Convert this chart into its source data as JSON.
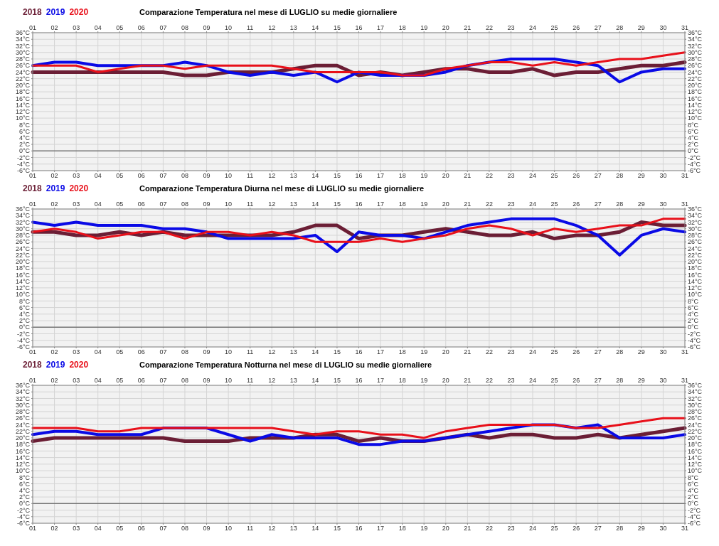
{
  "chart_data": [
    {
      "type": "line",
      "title": "Comparazione Temperatura nel mese di LUGLIO su medie giornaliere",
      "categories": [
        "01",
        "02",
        "03",
        "04",
        "05",
        "06",
        "07",
        "08",
        "09",
        "10",
        "11",
        "12",
        "13",
        "14",
        "15",
        "16",
        "17",
        "18",
        "19",
        "20",
        "21",
        "22",
        "23",
        "24",
        "25",
        "26",
        "27",
        "28",
        "29",
        "30",
        "31"
      ],
      "series": [
        {
          "name": "2018",
          "color": "#6b1e35",
          "values": [
            24,
            24,
            24,
            24,
            24,
            24,
            24,
            23,
            23,
            24,
            24,
            24,
            25,
            26,
            26,
            23,
            24,
            23,
            24,
            25,
            25,
            24,
            24,
            25,
            23,
            24,
            24,
            25,
            26,
            26,
            27
          ]
        },
        {
          "name": "2019",
          "color": "#0a0ae6",
          "values": [
            26,
            27,
            27,
            26,
            26,
            26,
            26,
            27,
            26,
            24,
            23,
            24,
            23,
            24,
            21,
            24,
            23,
            23,
            23,
            24,
            26,
            27,
            28,
            28,
            28,
            27,
            26,
            21,
            24,
            25,
            25
          ]
        },
        {
          "name": "2020",
          "color": "#e8101a",
          "values": [
            26,
            26,
            26,
            24,
            25,
            26,
            26,
            25,
            26,
            26,
            26,
            26,
            25,
            24,
            24,
            24,
            24,
            23,
            23,
            25,
            26,
            27,
            27,
            26,
            27,
            26,
            27,
            28,
            28,
            29,
            30
          ]
        }
      ],
      "ylim": [
        -6,
        36
      ],
      "yticks": [
        {
          "value": -6,
          "label": "-6°C"
        },
        {
          "value": -4,
          "label": "-4°C"
        },
        {
          "value": -2,
          "label": "-2°C"
        },
        {
          "value": 0,
          "label": "0°C"
        },
        {
          "value": 2,
          "label": "2°C"
        },
        {
          "value": 4,
          "label": "4°C"
        },
        {
          "value": 6,
          "label": "6°C"
        },
        {
          "value": 8,
          "label": "8°C"
        },
        {
          "value": 10,
          "label": "10°C"
        },
        {
          "value": 12,
          "label": "12°C"
        },
        {
          "value": 14,
          "label": "14°C"
        },
        {
          "value": 16,
          "label": "16°C"
        },
        {
          "value": 18,
          "label": "18°C"
        },
        {
          "value": 20,
          "label": "20°C"
        },
        {
          "value": 22,
          "label": "22°C"
        },
        {
          "value": 24,
          "label": "24°C"
        },
        {
          "value": 26,
          "label": "26°C"
        },
        {
          "value": 28,
          "label": "28°C"
        },
        {
          "value": 30,
          "label": "30°C"
        },
        {
          "value": 32,
          "label": "32°C"
        },
        {
          "value": 34,
          "label": "34°C"
        },
        {
          "value": 36,
          "label": "36°C"
        }
      ],
      "y2lim": [
        -6,
        36
      ],
      "y2ticks": [
        {
          "value": -6,
          "label": "-6°C"
        },
        {
          "value": -4,
          "label": "-4°C"
        },
        {
          "value": -2,
          "label": "-2°C"
        },
        {
          "value": 0,
          "label": "0°C"
        },
        {
          "value": 2,
          "label": "2°C"
        },
        {
          "value": 4,
          "label": "4°C"
        },
        {
          "value": 6,
          "label": "6°C"
        },
        {
          "value": 8,
          "label": "8°C"
        },
        {
          "value": 10,
          "label": "10°C"
        },
        {
          "value": 12,
          "label": "12°C"
        },
        {
          "value": 14,
          "label": "14°C"
        },
        {
          "value": 16,
          "label": "16°C"
        },
        {
          "value": 18,
          "label": "18°C"
        },
        {
          "value": 20,
          "label": "20°C"
        },
        {
          "value": 22,
          "label": "22°C"
        },
        {
          "value": 24,
          "label": "24°C"
        },
        {
          "value": 26,
          "label": "26°C"
        },
        {
          "value": 28,
          "label": "28°C"
        },
        {
          "value": 30,
          "label": "30°C"
        },
        {
          "value": 32,
          "label": "32°C"
        },
        {
          "value": 34,
          "label": "34°C"
        },
        {
          "value": 36,
          "label": "36°C"
        }
      ],
      "ref_lines": [
        {
          "axis": "y",
          "value": 0,
          "color": "#777777"
        }
      ],
      "grid": true,
      "legend": "top left",
      "marker": "none",
      "line_style": "solid"
    },
    {
      "type": "line",
      "title": "Comparazione Temperatura Diurna nel mese di LUGLIO su medie giornaliere",
      "categories": [
        "01",
        "02",
        "03",
        "04",
        "05",
        "06",
        "07",
        "08",
        "09",
        "10",
        "11",
        "12",
        "13",
        "14",
        "15",
        "16",
        "17",
        "18",
        "19",
        "20",
        "21",
        "22",
        "23",
        "24",
        "25",
        "26",
        "27",
        "28",
        "29",
        "30",
        "31"
      ],
      "series": [
        {
          "name": "2018",
          "color": "#6b1e35",
          "values": [
            29,
            29,
            28,
            28,
            29,
            28,
            29,
            28,
            28,
            28,
            28,
            28,
            29,
            31,
            31,
            27,
            28,
            28,
            29,
            30,
            29,
            28,
            28,
            29,
            27,
            28,
            28,
            29,
            32,
            31,
            31
          ]
        },
        {
          "name": "2019",
          "color": "#0a0ae6",
          "values": [
            32,
            31,
            32,
            31,
            31,
            31,
            30,
            30,
            29,
            27,
            27,
            27,
            27,
            28,
            23,
            29,
            28,
            28,
            27,
            29,
            31,
            32,
            33,
            33,
            33,
            31,
            28,
            22,
            28,
            30,
            29
          ]
        },
        {
          "name": "2020",
          "color": "#e8101a",
          "values": [
            29,
            30,
            29,
            27,
            28,
            29,
            29,
            27,
            29,
            29,
            28,
            29,
            28,
            26,
            26,
            26,
            27,
            26,
            27,
            28,
            30,
            31,
            30,
            28,
            30,
            29,
            30,
            31,
            31,
            33,
            33
          ]
        }
      ],
      "ylim": [
        -6,
        36
      ],
      "yticks": [
        {
          "value": -6,
          "label": "-6°C"
        },
        {
          "value": -4,
          "label": "-4°C"
        },
        {
          "value": -2,
          "label": "-2°C"
        },
        {
          "value": 0,
          "label": "0°C"
        },
        {
          "value": 2,
          "label": "2°C"
        },
        {
          "value": 4,
          "label": "4°C"
        },
        {
          "value": 6,
          "label": "6°C"
        },
        {
          "value": 8,
          "label": "8°C"
        },
        {
          "value": 10,
          "label": "10°C"
        },
        {
          "value": 12,
          "label": "12°C"
        },
        {
          "value": 14,
          "label": "14°C"
        },
        {
          "value": 16,
          "label": "16°C"
        },
        {
          "value": 18,
          "label": "18°C"
        },
        {
          "value": 20,
          "label": "20°C"
        },
        {
          "value": 22,
          "label": "22°C"
        },
        {
          "value": 24,
          "label": "24°C"
        },
        {
          "value": 26,
          "label": "26°C"
        },
        {
          "value": 28,
          "label": "28°C"
        },
        {
          "value": 30,
          "label": "30°C"
        },
        {
          "value": 32,
          "label": "32°C"
        },
        {
          "value": 34,
          "label": "34°C"
        },
        {
          "value": 36,
          "label": "36°C"
        }
      ],
      "y2lim": [
        -6,
        36
      ],
      "y2ticks": [
        {
          "value": -6,
          "label": "-6°C"
        },
        {
          "value": -4,
          "label": "-4°C"
        },
        {
          "value": -2,
          "label": "-2°C"
        },
        {
          "value": 0,
          "label": "0°C"
        },
        {
          "value": 2,
          "label": "2°C"
        },
        {
          "value": 4,
          "label": "4°C"
        },
        {
          "value": 6,
          "label": "6°C"
        },
        {
          "value": 8,
          "label": "8°C"
        },
        {
          "value": 10,
          "label": "10°C"
        },
        {
          "value": 12,
          "label": "12°C"
        },
        {
          "value": 14,
          "label": "14°C"
        },
        {
          "value": 16,
          "label": "16°C"
        },
        {
          "value": 18,
          "label": "18°C"
        },
        {
          "value": 20,
          "label": "20°C"
        },
        {
          "value": 22,
          "label": "22°C"
        },
        {
          "value": 24,
          "label": "24°C"
        },
        {
          "value": 26,
          "label": "26°C"
        },
        {
          "value": 28,
          "label": "28°C"
        },
        {
          "value": 30,
          "label": "30°C"
        },
        {
          "value": 32,
          "label": "32°C"
        },
        {
          "value": 34,
          "label": "34°C"
        },
        {
          "value": 36,
          "label": "36°C"
        }
      ],
      "ref_lines": [
        {
          "axis": "y",
          "value": 0,
          "color": "#777777"
        }
      ],
      "grid": true,
      "legend": "top left",
      "marker": "none",
      "line_style": "solid"
    },
    {
      "type": "line",
      "title": "Comparazione Temperatura Notturna nel mese di LUGLIO su medie giornaliere",
      "categories": [
        "01",
        "02",
        "03",
        "04",
        "05",
        "06",
        "07",
        "08",
        "09",
        "10",
        "11",
        "12",
        "13",
        "14",
        "15",
        "16",
        "17",
        "18",
        "19",
        "20",
        "21",
        "22",
        "23",
        "24",
        "25",
        "26",
        "27",
        "28",
        "29",
        "30",
        "31"
      ],
      "series": [
        {
          "name": "2018",
          "color": "#6b1e35",
          "values": [
            19,
            20,
            20,
            20,
            20,
            20,
            20,
            19,
            19,
            19,
            20,
            20,
            20,
            21,
            21,
            19,
            20,
            19,
            19,
            20,
            21,
            20,
            21,
            21,
            20,
            20,
            21,
            20,
            21,
            22,
            23
          ]
        },
        {
          "name": "2019",
          "color": "#0a0ae6",
          "values": [
            21,
            22,
            22,
            21,
            21,
            21,
            23,
            23,
            23,
            21,
            19,
            21,
            20,
            20,
            20,
            18,
            18,
            19,
            19,
            20,
            21,
            22,
            23,
            24,
            24,
            23,
            24,
            20,
            20,
            20,
            21
          ]
        },
        {
          "name": "2020",
          "color": "#e8101a",
          "values": [
            23,
            23,
            23,
            22,
            22,
            23,
            23,
            23,
            23,
            23,
            23,
            23,
            22,
            21,
            22,
            22,
            21,
            21,
            20,
            22,
            23,
            24,
            24,
            24,
            24,
            23,
            23,
            24,
            25,
            26,
            26
          ]
        }
      ],
      "ylim": [
        -6,
        36
      ],
      "yticks": [
        {
          "value": -6,
          "label": "-6°C"
        },
        {
          "value": -4,
          "label": "-4°C"
        },
        {
          "value": -2,
          "label": "-2°C"
        },
        {
          "value": 0,
          "label": "0°C"
        },
        {
          "value": 2,
          "label": "2°C"
        },
        {
          "value": 4,
          "label": "4°C"
        },
        {
          "value": 6,
          "label": "6°C"
        },
        {
          "value": 8,
          "label": "8°C"
        },
        {
          "value": 10,
          "label": "10°C"
        },
        {
          "value": 12,
          "label": "12°C"
        },
        {
          "value": 14,
          "label": "14°C"
        },
        {
          "value": 16,
          "label": "16°C"
        },
        {
          "value": 18,
          "label": "18°C"
        },
        {
          "value": 20,
          "label": "20°C"
        },
        {
          "value": 22,
          "label": "22°C"
        },
        {
          "value": 24,
          "label": "24°C"
        },
        {
          "value": 26,
          "label": "26°C"
        },
        {
          "value": 28,
          "label": "28°C"
        },
        {
          "value": 30,
          "label": "30°C"
        },
        {
          "value": 32,
          "label": "32°C"
        },
        {
          "value": 34,
          "label": "34°C"
        },
        {
          "value": 36,
          "label": "36°C"
        }
      ],
      "y2lim": [
        -6,
        36
      ],
      "y2ticks": [
        {
          "value": -6,
          "label": "-6°C"
        },
        {
          "value": -4,
          "label": "-4°C"
        },
        {
          "value": -2,
          "label": "-2°C"
        },
        {
          "value": 0,
          "label": "0°C"
        },
        {
          "value": 2,
          "label": "2°C"
        },
        {
          "value": 4,
          "label": "4°C"
        },
        {
          "value": 6,
          "label": "6°C"
        },
        {
          "value": 8,
          "label": "8°C"
        },
        {
          "value": 10,
          "label": "10°C"
        },
        {
          "value": 12,
          "label": "12°C"
        },
        {
          "value": 14,
          "label": "14°C"
        },
        {
          "value": 16,
          "label": "16°C"
        },
        {
          "value": 18,
          "label": "18°C"
        },
        {
          "value": 20,
          "label": "20°C"
        },
        {
          "value": 22,
          "label": "22°C"
        },
        {
          "value": 24,
          "label": "24°C"
        },
        {
          "value": 26,
          "label": "26°C"
        },
        {
          "value": 28,
          "label": "28°C"
        },
        {
          "value": 30,
          "label": "30°C"
        },
        {
          "value": 32,
          "label": "32°C"
        },
        {
          "value": 34,
          "label": "34°C"
        },
        {
          "value": 36,
          "label": "36°C"
        }
      ],
      "ref_lines": [
        {
          "axis": "y",
          "value": 0,
          "color": "#777777"
        }
      ],
      "grid": true,
      "legend": "top left",
      "marker": "none",
      "line_style": "solid"
    }
  ]
}
